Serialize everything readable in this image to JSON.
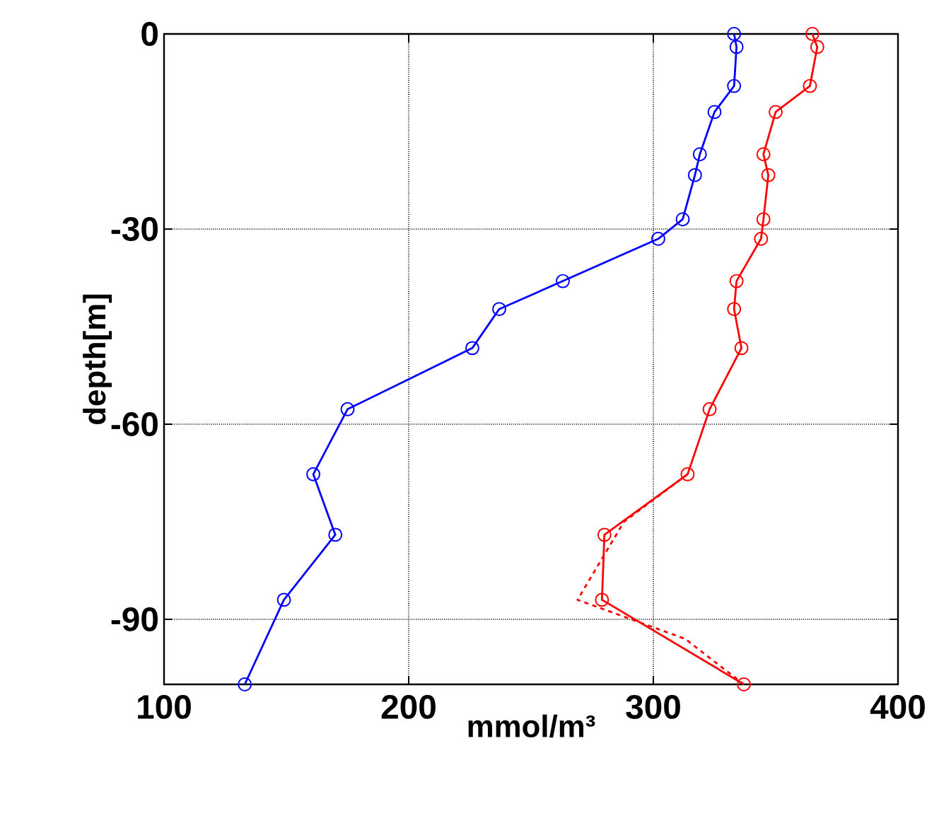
{
  "chart_data": {
    "type": "line",
    "xlabel": "mmol/m³",
    "ylabel": "depth[m]",
    "xlim": [
      100,
      400
    ],
    "ylim": [
      -100,
      0
    ],
    "xticks": [
      100,
      200,
      300,
      400
    ],
    "yticks": [
      0,
      -30,
      -60,
      -90
    ],
    "grid": true,
    "marker": "circle",
    "line_style": "solid",
    "series": [
      {
        "color": "#0000ff",
        "x": [
          333,
          334,
          333,
          325,
          319,
          317,
          312,
          302,
          263,
          237,
          226,
          175,
          161,
          170,
          149,
          133
        ],
        "values": [
          0,
          -2,
          -8,
          -12,
          -18.5,
          -21.7,
          -28.5,
          -31.5,
          -38,
          -42.3,
          -48.3,
          -57.7,
          -67.7,
          -77,
          -87,
          -100
        ]
      },
      {
        "color": "#ff0000",
        "x": [
          365,
          367,
          364,
          350,
          345,
          347,
          345,
          344,
          334,
          333,
          336,
          323,
          314,
          280,
          279,
          337
        ],
        "values": [
          0,
          -2,
          -8,
          -12,
          -18.5,
          -21.7,
          -28.5,
          -31.5,
          -38,
          -42.3,
          -48.3,
          -57.7,
          -67.7,
          -77,
          -87,
          -100
        ]
      },
      {
        "color": "#ff0000",
        "x": [
          314,
          288,
          269,
          313,
          337
        ],
        "values": [
          -67.7,
          -75,
          -87,
          -93,
          -100
        ],
        "marker": "none",
        "line_style": "dashed"
      }
    ]
  }
}
